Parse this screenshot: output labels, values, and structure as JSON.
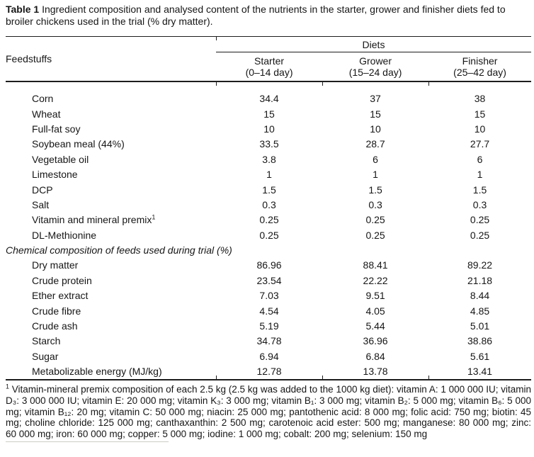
{
  "caption": {
    "label": "Table 1",
    "text": "Ingredient composition and analysed content of the nutrients in the starter, grower and finisher diets fed to broiler chickens used in the trial (% dry matter)."
  },
  "table": {
    "feedstuffs_header": "Feedstuffs",
    "diets_header": "Diets",
    "columns": [
      {
        "name": "Starter",
        "range": "(0–14 day)"
      },
      {
        "name": "Grower",
        "range": "(15–24 day)"
      },
      {
        "name": "Finisher",
        "range": "(25–42 day)"
      }
    ],
    "ingredient_rows": [
      {
        "label": "Corn",
        "values": [
          "34.4",
          "37",
          "38"
        ]
      },
      {
        "label": "Wheat",
        "values": [
          "15",
          "15",
          "15"
        ]
      },
      {
        "label": "Full-fat soy",
        "values": [
          "10",
          "10",
          "10"
        ]
      },
      {
        "label": "Soybean meal (44%)",
        "values": [
          "33.5",
          "28.7",
          "27.7"
        ]
      },
      {
        "label": "Vegetable oil",
        "values": [
          "3.8",
          "6",
          "6"
        ]
      },
      {
        "label": "Limestone",
        "values": [
          "1",
          "1",
          "1"
        ]
      },
      {
        "label": "DCP",
        "values": [
          "1.5",
          "1.5",
          "1.5"
        ]
      },
      {
        "label": "Salt",
        "values": [
          "0.3",
          "0.3",
          "0.3"
        ]
      },
      {
        "label": "Vitamin and mineral premix",
        "sup": "1",
        "values": [
          "0.25",
          "0.25",
          "0.25"
        ]
      },
      {
        "label": "DL-Methionine",
        "values": [
          "0.25",
          "0.25",
          "0.25"
        ]
      }
    ],
    "section_header": "Chemical composition of feeds used during trial (%)",
    "composition_rows": [
      {
        "label": "Dry matter",
        "values": [
          "86.96",
          "88.41",
          "89.22"
        ]
      },
      {
        "label": "Crude protein",
        "values": [
          "23.54",
          "22.22",
          "21.18"
        ]
      },
      {
        "label": "Ether extract",
        "values": [
          "7.03",
          "9.51",
          "8.44"
        ]
      },
      {
        "label": "Crude fibre",
        "values": [
          "4.54",
          "4.05",
          "4.85"
        ]
      },
      {
        "label": "Crude ash",
        "values": [
          "5.19",
          "5.44",
          "5.01"
        ]
      },
      {
        "label": "Starch",
        "values": [
          "34.78",
          "36.96",
          "38.86"
        ]
      },
      {
        "label": "Sugar",
        "values": [
          "6.94",
          "6.84",
          "5.61"
        ]
      },
      {
        "label": "Metabolizable energy (MJ/kg)",
        "values": [
          "12.78",
          "13.78",
          "13.41"
        ]
      }
    ]
  },
  "footnote": {
    "marker": "1",
    "text": " Vitamin-mineral premix composition of each 2.5 kg (2.5 kg was added to the 1000 kg diet): vitamin A: 1 000 000 IU; vitamin D₃: 3 000 000 IU; vitamin E: 20 000 mg; vitamin K₃: 3 000 mg; vitamin B₁: 3 000 mg; vitamin B₂: 5 000 mg; vitamin B₆: 5 000 mg; vitamin B₁₂: 20 mg; vitamin C: 50 000 mg; niacin: 25 000 mg; pantothenic acid: 8 000 mg; folic acid: 750 mg; biotin: 45 mg; choline chloride: 125 000 mg; canthaxanthin: 2 500 mg; carotenoic acid ester: 500 mg; manganese: 80 000 mg; zinc: 60 000 mg; iron: 60 000 mg; copper: 5 000 mg; iodine: 1 000 mg; cobalt: 200 mg; selenium: 150 mg"
  }
}
